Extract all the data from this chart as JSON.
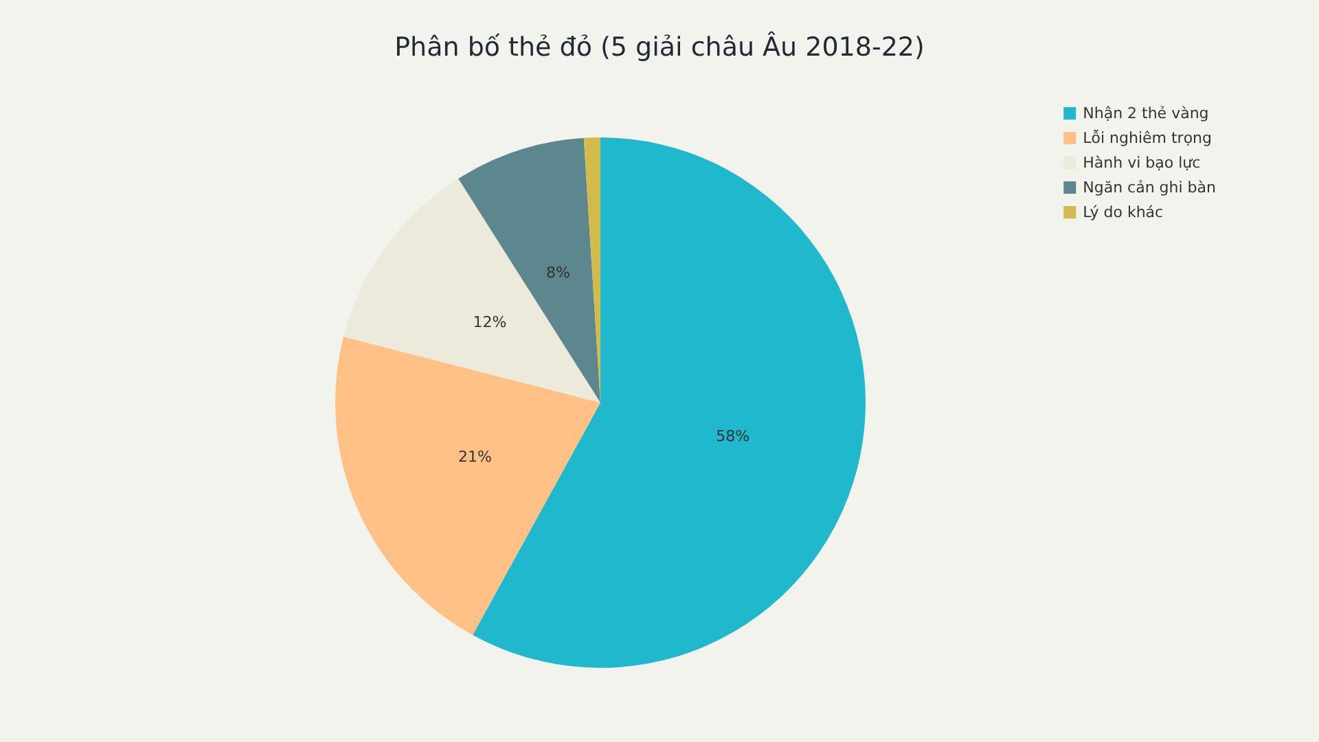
{
  "chart_data": {
    "type": "pie",
    "title": "Phân bố thẻ đỏ (5 giải châu Âu 2018-22)",
    "categories": [
      "Nhận 2 thẻ vàng",
      "Lỗi nghiêm trọng",
      "Hành vi bạo lực",
      "Ngăn cản ghi bàn",
      "Lý do khác"
    ],
    "values": [
      58,
      21,
      12,
      8,
      1
    ],
    "colors": [
      "#1fb8cd",
      "#ffc185",
      "#eceadb",
      "#5d878f",
      "#d2ba4c"
    ],
    "value_labels": [
      "58%",
      "21%",
      "12%",
      "8%",
      null
    ],
    "legend": "top right"
  }
}
